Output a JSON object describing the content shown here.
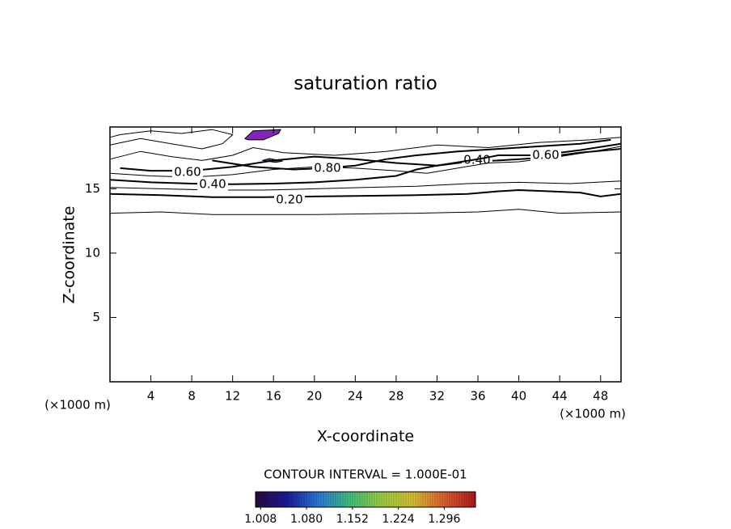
{
  "chart_data": {
    "type": "contour",
    "title": "saturation ratio",
    "x_label": "X-coordinate",
    "y_label": "Z-coordinate",
    "x_unit_label": "(×1000 m)",
    "y_unit_label": "(×1000 m)",
    "note": "CONTOUR INTERVAL = 1.000E-01",
    "xlim": [
      0,
      50
    ],
    "ylim": [
      0,
      19.8
    ],
    "xticks": [
      4,
      8,
      12,
      16,
      20,
      24,
      28,
      32,
      36,
      40,
      44,
      48
    ],
    "yticks": [
      5,
      10,
      15
    ],
    "contours": [
      {
        "level": 0.1,
        "x": [
          0,
          5,
          10,
          20,
          30,
          36,
          40,
          44,
          50
        ],
        "y": [
          13.1,
          13.2,
          13.0,
          13.0,
          13.1,
          13.2,
          13.4,
          13.1,
          13.2
        ]
      },
      {
        "level": 0.2,
        "label": "0.20",
        "x": [
          0,
          5,
          10,
          15,
          20,
          25,
          30,
          35,
          38,
          40,
          43,
          46,
          48,
          50
        ],
        "y": [
          14.6,
          14.5,
          14.35,
          14.35,
          14.4,
          14.45,
          14.5,
          14.6,
          14.8,
          14.9,
          14.8,
          14.7,
          14.4,
          14.6
        ]
      },
      {
        "level": 0.3,
        "x": [
          0,
          5,
          10,
          15,
          20,
          25,
          30,
          35,
          40,
          45,
          50
        ],
        "y": [
          15.1,
          15.0,
          14.9,
          14.9,
          15.0,
          15.1,
          15.2,
          15.4,
          15.5,
          15.4,
          15.6
        ]
      },
      {
        "level": 0.4,
        "label": "0.40",
        "x": [
          0,
          4,
          8,
          12,
          16,
          20,
          24,
          28,
          30,
          32,
          35,
          38,
          42,
          46,
          50
        ],
        "y": [
          15.7,
          15.5,
          15.4,
          15.35,
          15.4,
          15.5,
          15.7,
          16.0,
          16.5,
          16.8,
          17.1,
          17.2,
          17.4,
          17.8,
          18.1
        ]
      },
      {
        "level": 0.5,
        "x": [
          0,
          4,
          8,
          12,
          16,
          20,
          24,
          28,
          31,
          34,
          37,
          40,
          44,
          48,
          50
        ],
        "y": [
          16.2,
          16.0,
          15.9,
          16.1,
          16.5,
          16.7,
          16.6,
          16.4,
          16.2,
          16.6,
          17.0,
          17.1,
          17.5,
          18.0,
          18.3
        ]
      },
      {
        "level": 0.6,
        "label": "0.60",
        "x": [
          1,
          4,
          8,
          12,
          16,
          20,
          24,
          28,
          32,
          36,
          38,
          42,
          46,
          50
        ],
        "y": [
          16.6,
          16.4,
          16.4,
          16.7,
          17.2,
          17.5,
          17.3,
          17.0,
          16.8,
          17.3,
          17.6,
          17.6,
          18.0,
          18.5
        ]
      },
      {
        "level": 0.7,
        "x": [
          0,
          3,
          6,
          9,
          12,
          14,
          17,
          22,
          27,
          32,
          37,
          42,
          47,
          50
        ],
        "y": [
          17.3,
          17.9,
          17.5,
          17.2,
          17.6,
          18.2,
          17.8,
          17.6,
          17.9,
          18.4,
          18.2,
          18.6,
          18.8,
          19.0
        ]
      },
      {
        "level": 0.8,
        "label": "0.80",
        "x": [
          10,
          14,
          18,
          21,
          24,
          27,
          30,
          34,
          40,
          46,
          49
        ],
        "y": [
          17.2,
          16.7,
          16.5,
          16.6,
          16.8,
          17.3,
          17.6,
          17.9,
          18.2,
          18.5,
          18.8
        ]
      },
      {
        "level": 0.9,
        "x": [
          0,
          3,
          6,
          9,
          11,
          12,
          10,
          7,
          4,
          1,
          0
        ],
        "y": [
          18.4,
          18.9,
          18.5,
          18.1,
          18.5,
          19.2,
          19.6,
          19.3,
          19.5,
          19.2,
          19.0
        ]
      }
    ],
    "filled_regions": [
      {
        "level": 1.008,
        "color": "#8424b8",
        "x": [
          13.2,
          14.0,
          16.7,
          16.5,
          15.0,
          13.5
        ],
        "y": [
          18.9,
          19.5,
          19.6,
          19.3,
          18.8,
          18.8
        ]
      },
      {
        "level": 1.008,
        "color": "#8424b8",
        "x": [
          14.9,
          15.6,
          16.9,
          16.2
        ],
        "y": [
          17.2,
          17.35,
          17.15,
          17.05
        ]
      }
    ],
    "colorbar": {
      "lim": [
        1.0,
        1.345
      ],
      "colors": [
        "#2a0a3c",
        "#1a1a9a",
        "#2a7ad8",
        "#40c080",
        "#9ad040",
        "#d8c030",
        "#e06030",
        "#b01818"
      ],
      "ticks": [
        1.008,
        {
          "value": 1.08,
          "label": "1.080"
        },
        1.152,
        1.224,
        1.296
      ]
    }
  }
}
